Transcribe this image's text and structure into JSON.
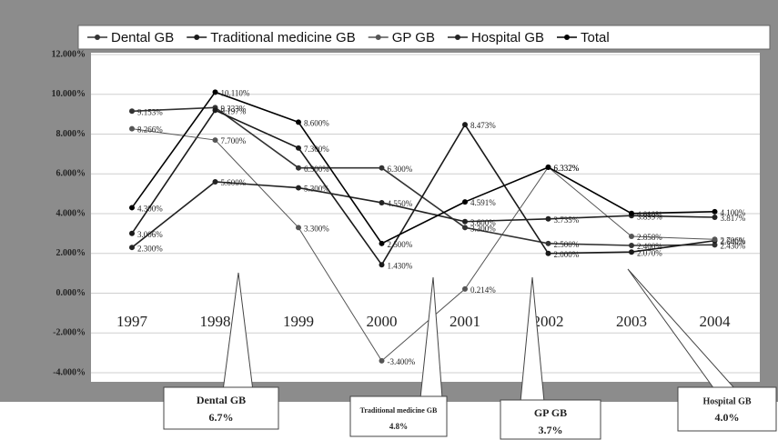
{
  "chart_data": {
    "type": "line",
    "categories": [
      "1997",
      "1998",
      "1999",
      "2000",
      "2001",
      "2002",
      "2003",
      "2004"
    ],
    "series": [
      {
        "name": "Dental GB",
        "color": "#333333",
        "values": [
          9.153,
          9.333,
          6.3,
          6.3,
          3.3,
          2.5,
          2.4,
          2.43
        ],
        "value_labels": [
          "9.153%",
          "9.333%",
          "6.300%",
          "6.300%",
          "3.300%",
          "2.500%",
          "2.400%",
          "2.430%"
        ]
      },
      {
        "name": "Traditional medicine GB",
        "color": "#1a1a1a",
        "values": [
          3.006,
          9.197,
          7.3,
          1.43,
          8.473,
          2.0,
          2.07,
          2.64
        ],
        "value_labels": [
          "3.006%",
          "9.197%",
          "7.300%",
          "1.430%",
          "8.473%",
          "2.000%",
          "2.070%",
          "2.640%"
        ]
      },
      {
        "name": "GP GB",
        "color": "#555555",
        "values": [
          8.266,
          7.7,
          3.3,
          -3.4,
          0.214,
          6.337,
          2.858,
          2.706
        ],
        "value_labels": [
          "8.266%",
          "7.700%",
          "3.300%",
          "-3.400%",
          "0.214%",
          "6.337%",
          "2.858%",
          "2.706%"
        ]
      },
      {
        "name": "Hospital GB",
        "color": "#222222",
        "values": [
          2.3,
          5.6,
          5.3,
          4.55,
          3.6,
          3.735,
          3.899,
          3.817
        ],
        "value_labels": [
          "2.300%",
          "5.600%",
          "5.300%",
          "4.550%",
          "3.600%",
          "3.735%",
          "3.899%",
          "3.817%"
        ]
      },
      {
        "name": "Total",
        "color": "#000000",
        "values": [
          4.3,
          10.11,
          8.6,
          2.5,
          4.591,
          6.332,
          4.01,
          4.1
        ],
        "value_labels": [
          "4.300%",
          "10.110%",
          "8.600%",
          "2.500%",
          "4.591%",
          "6.332%",
          "4.010%",
          "4.100%"
        ]
      }
    ],
    "ylim": [
      -4,
      12
    ],
    "yticks": [
      {
        "value": -4,
        "label": "-4.000%"
      },
      {
        "value": -2,
        "label": "-2.000%"
      },
      {
        "value": 0,
        "label": "0.000%"
      },
      {
        "value": 2,
        "label": "2.000%"
      },
      {
        "value": 4,
        "label": "4.000%"
      },
      {
        "value": 6,
        "label": "6.000%"
      },
      {
        "value": 8,
        "label": "8.000%"
      },
      {
        "value": 10,
        "label": "10.000%"
      },
      {
        "value": 12,
        "label": "12.000%"
      }
    ],
    "grid": true,
    "legend": "top",
    "annotations": [
      {
        "title": "Dental GB",
        "text": "6.7%"
      },
      {
        "title": "Traditional medicine GB",
        "text": "4.8%"
      },
      {
        "title": "GP GB",
        "text": "3.7%"
      },
      {
        "title": "Hospital GB",
        "text": "4.0%"
      }
    ]
  }
}
